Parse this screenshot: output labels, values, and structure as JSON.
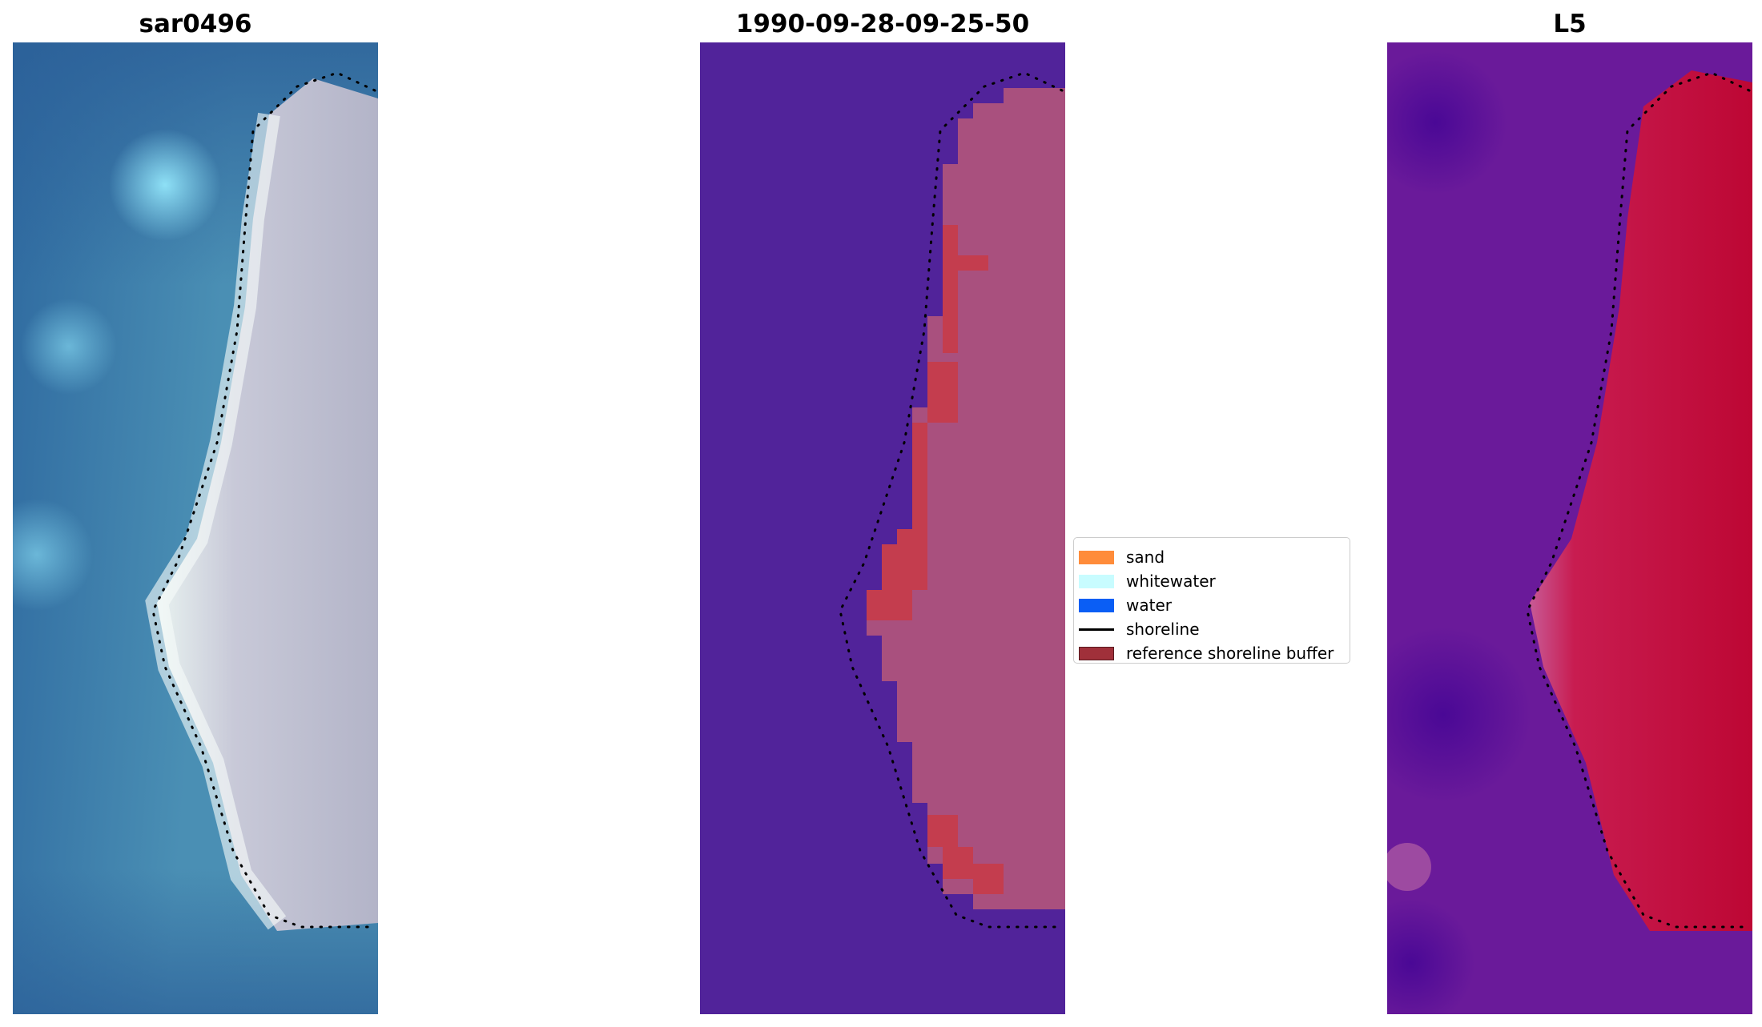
{
  "panels": [
    {
      "title": "sar0496",
      "kind": "rgb-composite"
    },
    {
      "title": "1990-09-28-09-25-50",
      "kind": "classified-overlay"
    },
    {
      "title": "L5",
      "kind": "mndwi-index"
    }
  ],
  "legend": {
    "placement": "center-left of right panel",
    "items": [
      {
        "label": "sand",
        "type": "patch",
        "color": "#ff8c3a"
      },
      {
        "label": "whitewater",
        "type": "patch",
        "color": "#c8fcff"
      },
      {
        "label": "water",
        "type": "patch",
        "color": "#0a5ef5"
      },
      {
        "label": "shoreline",
        "type": "line",
        "color": "#000000"
      },
      {
        "label": "reference shoreline buffer",
        "type": "patch",
        "color": "#a0303a"
      }
    ]
  },
  "colors": {
    "ocean_left": "#3d7aa8",
    "beach_left": "#c3c2d4",
    "water_class_mid": "#51239a",
    "land_mid": "#a9507e",
    "buffer_mid": "#c43d4e",
    "water_right": "#6a1a9a",
    "land_right": "#c20a3e"
  }
}
